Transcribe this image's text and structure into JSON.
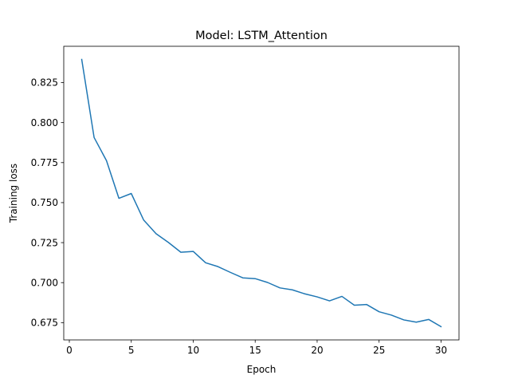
{
  "chart_data": {
    "type": "line",
    "title": "Model: LSTM_Attention",
    "xlabel": "Epoch",
    "ylabel": "Training loss",
    "xlim": [
      -0.45,
      31.45
    ],
    "ylim": [
      0.6642,
      0.8477
    ],
    "xticks": [
      0,
      5,
      10,
      15,
      20,
      25,
      30
    ],
    "yticks": [
      0.675,
      0.7,
      0.725,
      0.75,
      0.775,
      0.8,
      0.825
    ],
    "ytick_labels": [
      "0.675",
      "0.700",
      "0.725",
      "0.750",
      "0.775",
      "0.800",
      "0.825"
    ],
    "grid": false,
    "legend": null,
    "series": [
      {
        "color": "#1f77b4",
        "x": [
          1,
          2,
          3,
          4,
          5,
          6,
          7,
          8,
          9,
          10,
          11,
          12,
          13,
          14,
          15,
          16,
          17,
          18,
          19,
          20,
          21,
          22,
          23,
          24,
          25,
          26,
          27,
          28,
          29,
          30
        ],
        "y": [
          0.8395,
          0.7907,
          0.7762,
          0.7527,
          0.7557,
          0.7391,
          0.7306,
          0.7251,
          0.719,
          0.7195,
          0.7124,
          0.71,
          0.7064,
          0.703,
          0.7025,
          0.7001,
          0.6967,
          0.6955,
          0.693,
          0.6911,
          0.6886,
          0.6914,
          0.6859,
          0.6863,
          0.6818,
          0.6797,
          0.6767,
          0.6753,
          0.677,
          0.6725
        ]
      }
    ]
  }
}
